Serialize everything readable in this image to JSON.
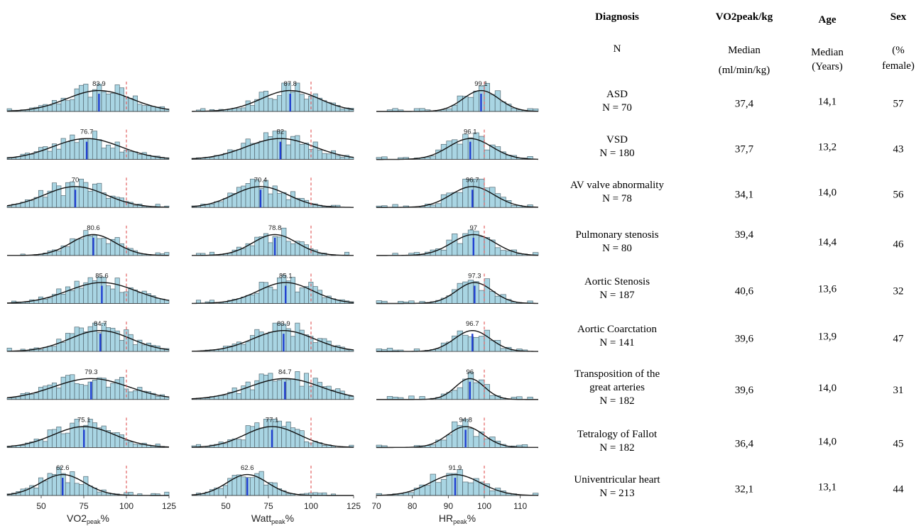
{
  "table": {
    "headers": [
      {
        "key": "diagnosis",
        "title": "Diagnosis",
        "sub": "N"
      },
      {
        "key": "vo2",
        "title": "VO2peak/kg",
        "sub": "Median (ml/min/kg)"
      },
      {
        "key": "age",
        "title": "Age",
        "sub": "Median (Years)"
      },
      {
        "key": "sex",
        "title": "Sex",
        "sub": "(% female)"
      }
    ],
    "sub_lines": {
      "vo2": [
        "Median",
        "(ml/min/kg)"
      ],
      "age": [
        "Median",
        "(Years)"
      ],
      "sex": [
        "(%",
        "female)"
      ]
    },
    "rows": [
      {
        "diagnosis": [
          "ASD"
        ],
        "n": "N = 70",
        "vo2": "37,4",
        "age": "14,1",
        "sex": "57"
      },
      {
        "diagnosis": [
          "VSD"
        ],
        "n": "N = 180",
        "vo2": "37,7",
        "age": "13,2",
        "sex": "43"
      },
      {
        "diagnosis": [
          "AV valve abnormality"
        ],
        "n": "N = 78",
        "vo2": "34,1",
        "age": "14,0",
        "sex": "56"
      },
      {
        "diagnosis": [
          "Pulmonary stenosis"
        ],
        "n": "N = 80",
        "vo2": "39,4",
        "age": "14,4",
        "sex": "46"
      },
      {
        "diagnosis": [
          "Aortic Stenosis"
        ],
        "n": "N = 187",
        "vo2": "40,6",
        "age": "13,6",
        "sex": "32"
      },
      {
        "diagnosis": [
          "Aortic Coarctation"
        ],
        "n": "N = 141",
        "vo2": "39,6",
        "age": "13,9",
        "sex": "47"
      },
      {
        "diagnosis": [
          "Transposition of the",
          "great arteries"
        ],
        "n": "N = 182",
        "vo2": "39,6",
        "age": "14,0",
        "sex": "31"
      },
      {
        "diagnosis": [
          "Tetralogy of Fallot"
        ],
        "n": "N = 182",
        "vo2": "36,4",
        "age": "14,0",
        "sex": "45"
      },
      {
        "diagnosis": [
          "Univentricular heart"
        ],
        "n": "N = 213",
        "vo2": "32,1",
        "age": "13,1",
        "sex": "44"
      }
    ]
  },
  "chart_data": [
    {
      "type": "histogram",
      "xlabel": "VO2peak%",
      "xlabel_main": "VO2",
      "xlabel_sub": "peak",
      "xlabel_suffix": "%",
      "xlim": [
        30,
        125
      ],
      "xticks": [
        50,
        75,
        100,
        125
      ],
      "reference_line": 100,
      "panels": [
        {
          "row": "ASD",
          "median": 83.9,
          "label": "83.9",
          "sd": 19
        },
        {
          "row": "VSD",
          "median": 76.7,
          "label": "76.7",
          "sd": 20
        },
        {
          "row": "AV valve abnormality",
          "median": 70,
          "label": "70",
          "sd": 18
        },
        {
          "row": "Pulmonary stenosis",
          "median": 80.6,
          "label": "80.6",
          "sd": 13
        },
        {
          "row": "Aortic Stenosis",
          "median": 85.6,
          "label": "85.6",
          "sd": 20
        },
        {
          "row": "Aortic Coarctation",
          "median": 84.7,
          "label": "84.7",
          "sd": 18
        },
        {
          "row": "Transposition of the great arteries",
          "median": 79.3,
          "label": "79.3",
          "sd": 22
        },
        {
          "row": "Tetralogy of Fallot",
          "median": 75.1,
          "label": "75.1",
          "sd": 18
        },
        {
          "row": "Univentricular heart",
          "median": 62.6,
          "label": "62.6",
          "sd": 13
        }
      ]
    },
    {
      "type": "histogram",
      "xlabel": "Wattpeak%",
      "xlabel_main": "Watt",
      "xlabel_sub": "peak",
      "xlabel_suffix": "%",
      "xlim": [
        30,
        125
      ],
      "xticks": [
        50,
        75,
        100,
        125
      ],
      "reference_line": 100,
      "panels": [
        {
          "row": "ASD",
          "median": 87.8,
          "label": "87.8",
          "sd": 17
        },
        {
          "row": "VSD",
          "median": 82,
          "label": "82",
          "sd": 20
        },
        {
          "row": "AV valve abnormality",
          "median": 70.4,
          "label": "70.4",
          "sd": 16
        },
        {
          "row": "Pulmonary stenosis",
          "median": 78.8,
          "label": "78.8",
          "sd": 13
        },
        {
          "row": "Aortic Stenosis",
          "median": 85.1,
          "label": "85.1",
          "sd": 16
        },
        {
          "row": "Aortic Coarctation",
          "median": 83.9,
          "label": "83.9",
          "sd": 18
        },
        {
          "row": "Transposition of the great arteries",
          "median": 84.7,
          "label": "84.7",
          "sd": 21
        },
        {
          "row": "Tetralogy of Fallot",
          "median": 77.1,
          "label": "77.1",
          "sd": 16
        },
        {
          "row": "Univentricular heart",
          "median": 62.6,
          "label": "62.6",
          "sd": 12
        }
      ]
    },
    {
      "type": "histogram",
      "xlabel": "HRpeak%",
      "xlabel_main": "HR",
      "xlabel_sub": "peak",
      "xlabel_suffix": "%",
      "xlim": [
        70,
        115
      ],
      "xticks": [
        70,
        80,
        90,
        100,
        110
      ],
      "reference_line": 100,
      "panels": [
        {
          "row": "ASD",
          "median": 99.1,
          "label": "99.1",
          "sd": 5
        },
        {
          "row": "VSD",
          "median": 96.1,
          "label": "96.1",
          "sd": 6
        },
        {
          "row": "AV valve abnormality",
          "median": 96.7,
          "label": "96.7",
          "sd": 6
        },
        {
          "row": "Pulmonary stenosis",
          "median": 97,
          "label": "97",
          "sd": 6
        },
        {
          "row": "Aortic Stenosis",
          "median": 97.3,
          "label": "97.3",
          "sd": 5
        },
        {
          "row": "Aortic Coarctation",
          "median": 96.7,
          "label": "96.7",
          "sd": 5
        },
        {
          "row": "Transposition of the great arteries",
          "median": 96,
          "label": "96",
          "sd": 4
        },
        {
          "row": "Tetralogy of Fallot",
          "median": 94.8,
          "label": "94.8",
          "sd": 5
        },
        {
          "row": "Univentricular heart",
          "median": 91.9,
          "label": "91.9",
          "sd": 7
        }
      ]
    }
  ],
  "colors": {
    "bar_fill": "#a9d5e3",
    "bar_stroke": "#556a73",
    "density": "#111111",
    "median_line": "#1f3fd1",
    "reference_line": "#e05555"
  }
}
